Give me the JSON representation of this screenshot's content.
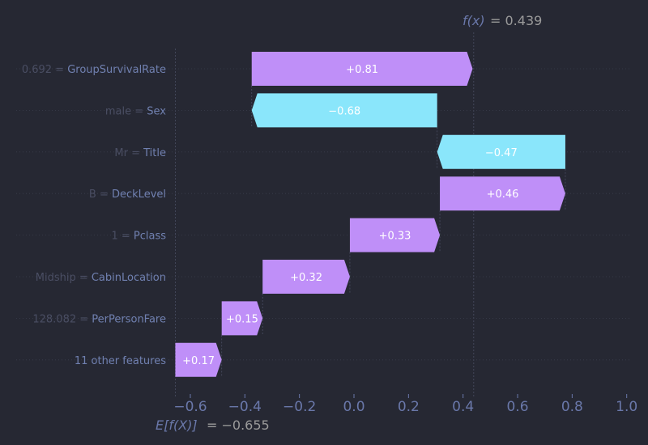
{
  "chart_data": {
    "type": "waterfall",
    "title": "",
    "base_value": -0.655,
    "output_value": 0.439,
    "base_label": {
      "expr": "E[f(X)]",
      "eq": "= −0.655"
    },
    "output_label": {
      "expr": "f(x)",
      "eq": "= 0.439"
    },
    "xlim": [
      -0.67,
      1.01
    ],
    "xticks": [
      -0.6,
      -0.4,
      -0.2,
      0.0,
      0.2,
      0.4,
      0.6,
      0.8,
      1.0
    ],
    "xtick_labels": [
      "−0.6",
      "−0.4",
      "−0.2",
      "0.0",
      "0.2",
      "0.4",
      "0.6",
      "0.8",
      "1.0"
    ],
    "features": [
      {
        "value": "0.692",
        "name": "GroupSurvivalRate",
        "contribution": 0.81,
        "label": "+0.81"
      },
      {
        "value": "male",
        "name": "Sex",
        "contribution": -0.68,
        "label": "−0.68"
      },
      {
        "value": "Mr",
        "name": "Title",
        "contribution": -0.47,
        "label": "−0.47"
      },
      {
        "value": "B",
        "name": "DeckLevel",
        "contribution": 0.46,
        "label": "+0.46"
      },
      {
        "value": "1",
        "name": "Pclass",
        "contribution": 0.33,
        "label": "+0.33"
      },
      {
        "value": "Midship",
        "name": "CabinLocation",
        "contribution": 0.32,
        "label": "+0.32"
      },
      {
        "value": "128.082",
        "name": "PerPersonFare",
        "contribution": 0.15,
        "label": "+0.15"
      },
      {
        "value": "",
        "name": "11 other features",
        "contribution": 0.17,
        "label": "+0.17"
      }
    ],
    "colors": {
      "positive": "#bf8ff8",
      "negative": "#8ae6fb",
      "background": "#262833"
    }
  }
}
